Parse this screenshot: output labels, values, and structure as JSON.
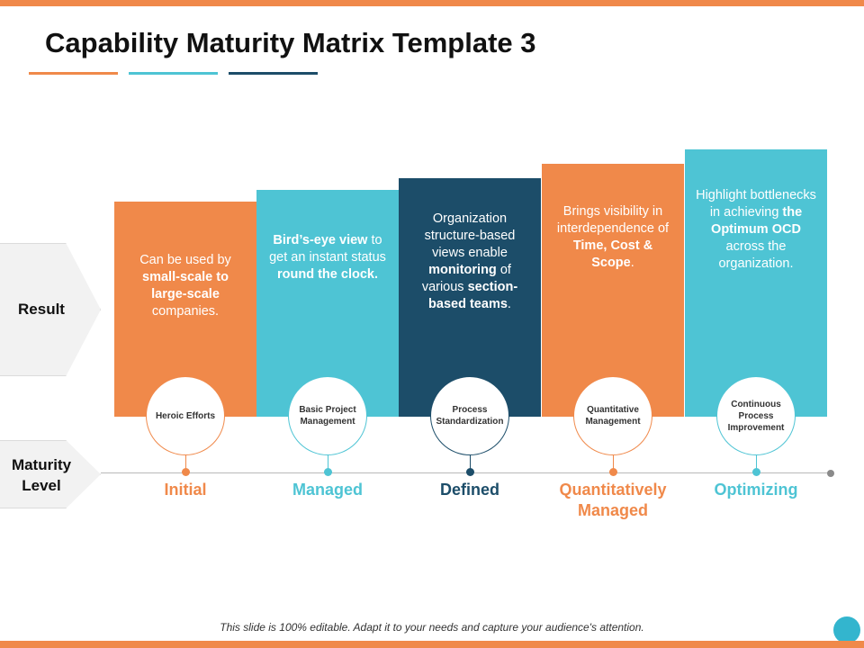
{
  "title": "Capability Maturity Matrix Template 3",
  "colors": {
    "orange": "#f0894a",
    "teal": "#4ec4d4",
    "navy": "#1c4d69"
  },
  "row_labels": {
    "result": "Result",
    "maturity_line1": "Maturity",
    "maturity_line2": "Level"
  },
  "columns": [
    {
      "circle": "Heroic Efforts",
      "level_line1": "Initial",
      "level_line2": "",
      "text": [
        "Can be used by ",
        "small-scale to large-scale",
        " companies."
      ]
    },
    {
      "circle": "Basic Project Management",
      "level_line1": "Managed",
      "level_line2": "",
      "text": [
        "Bird’s-eye view",
        " to get an instant status ",
        "round the clock."
      ]
    },
    {
      "circle": "Process Standardization",
      "level_line1": "Defined",
      "level_line2": "",
      "text": [
        "Organization structure-based views enable ",
        "monitoring",
        " of various ",
        "section-based teams",
        "."
      ]
    },
    {
      "circle": "Quantitative Management",
      "level_line1": "Quantitatively",
      "level_line2": "Managed",
      "text": [
        "Brings visibility in interdependence of ",
        "Time, Cost & Scope",
        "."
      ]
    },
    {
      "circle": "Continuous Process Improvement",
      "level_line1": "Optimizing",
      "level_line2": "",
      "text": [
        "Highlight bottlenecks in achieving ",
        "the Optimum OCD",
        " across the organization."
      ]
    }
  ],
  "footer": "This slide is 100% editable. Adapt it to your needs and capture your audience's attention."
}
